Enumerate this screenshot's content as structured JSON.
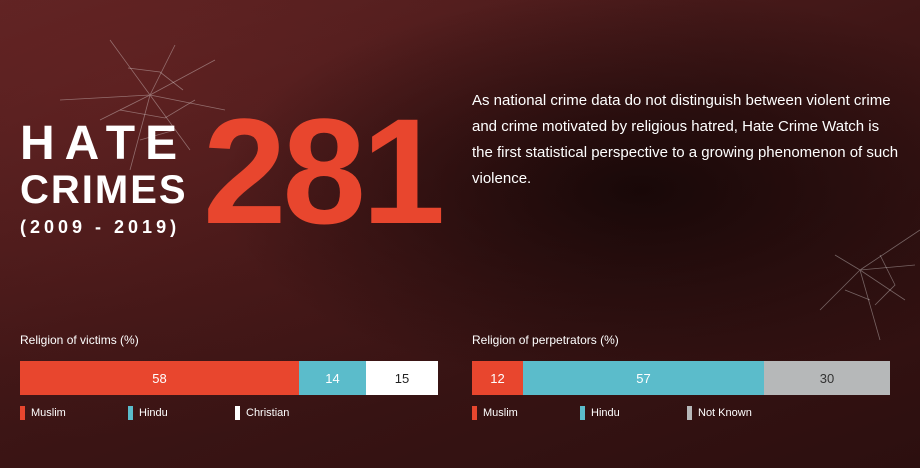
{
  "header": {
    "title_line1": "HATE",
    "title_line2": "CRIMES",
    "period": "(2009 - 2019)",
    "big_number": "281",
    "description": "As national crime data do not distinguish between violent crime and crime motivated by religious hatred, Hate Crime Watch is the first statistical perspective to a growing phenomenon of such violence."
  },
  "colors": {
    "accent_red": "#e8462e",
    "teal": "#5bbccb",
    "white": "#ffffff",
    "gray": "#b6b8b9"
  },
  "chart_data": [
    {
      "type": "bar",
      "orientation": "horizontal-stacked",
      "title": "Religion of victims (%)",
      "series": [
        {
          "name": "Muslim",
          "value": 58,
          "label": "58",
          "color": "#e8462e",
          "text_color": "#ffffff"
        },
        {
          "name": "Hindu",
          "value": 14,
          "label": "14",
          "color": "#5bbccb",
          "text_color": "#ffffff"
        },
        {
          "name": "Christian",
          "value": 15,
          "label": "15",
          "color": "#ffffff",
          "text_color": "#222222"
        }
      ],
      "legend_placement": "bottom"
    },
    {
      "type": "bar",
      "orientation": "horizontal-stacked",
      "title": "Religion of perpetrators (%)",
      "series": [
        {
          "name": "Muslim",
          "value": 12,
          "label": "12",
          "color": "#e8462e",
          "text_color": "#ffffff"
        },
        {
          "name": "Hindu",
          "value": 57,
          "label": "57",
          "color": "#5bbccb",
          "text_color": "#ffffff"
        },
        {
          "name": "Not Known",
          "value": 30,
          "label": "30",
          "color": "#b6b8b9",
          "text_color": "#333333"
        }
      ],
      "legend_placement": "bottom"
    }
  ]
}
